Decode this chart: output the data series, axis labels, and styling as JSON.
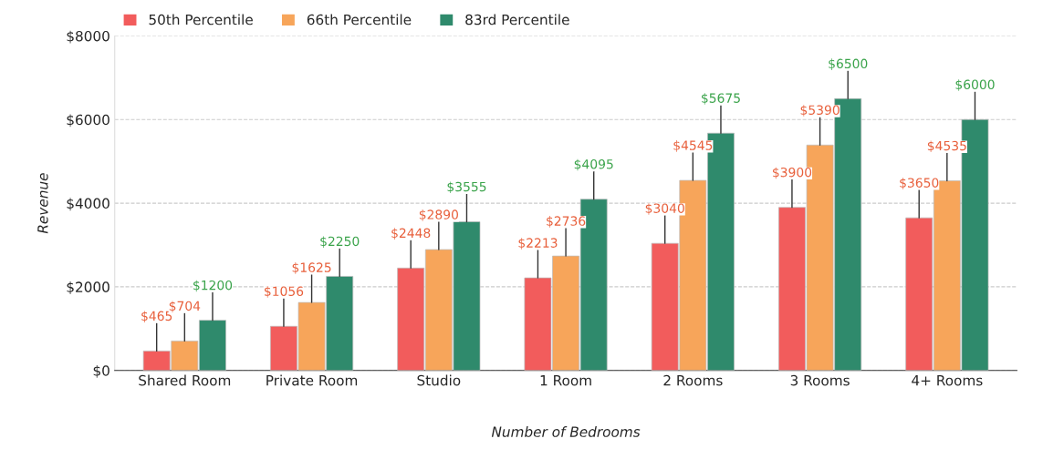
{
  "chart_data": {
    "type": "bar",
    "xlabel": "Number of Bedrooms",
    "ylabel": "Revenue",
    "categories": [
      "Shared Room",
      "Private Room",
      "Studio",
      "1 Room",
      "2 Rooms",
      "3 Rooms",
      "4+ Rooms"
    ],
    "series": [
      {
        "name": "50th Percentile",
        "color": "#f25c5c",
        "values": [
          465,
          1056,
          2448,
          2213,
          3040,
          3900,
          3650
        ],
        "value_labels": [
          "$465",
          "$1056",
          "$2448",
          "$2213",
          "$3040",
          "$3900",
          "$3650"
        ]
      },
      {
        "name": "66th Percentile",
        "color": "#f7a55a",
        "values": [
          704,
          1625,
          2890,
          2736,
          4545,
          5390,
          4535
        ],
        "value_labels": [
          "$704",
          "$1625",
          "$2890",
          "$2736",
          "$4545",
          "$5390",
          "$4535"
        ]
      },
      {
        "name": "83rd Percentile",
        "color": "#2f8a6c",
        "values": [
          1200,
          2250,
          3555,
          4095,
          5675,
          6500,
          6000
        ],
        "value_labels": [
          "$1200",
          "$2250",
          "$3555",
          "$4095",
          "$5675",
          "$6500",
          "$6000"
        ]
      }
    ],
    "ylim": [
      0,
      8000
    ],
    "yticks": [
      {
        "value": 0,
        "label": "$0"
      },
      {
        "value": 2000,
        "label": "$2000"
      },
      {
        "value": 4000,
        "label": "$4000"
      },
      {
        "value": 6000,
        "label": "$6000"
      },
      {
        "value": 8000,
        "label": "$8000"
      }
    ],
    "grid": "y",
    "legend": "top left"
  }
}
